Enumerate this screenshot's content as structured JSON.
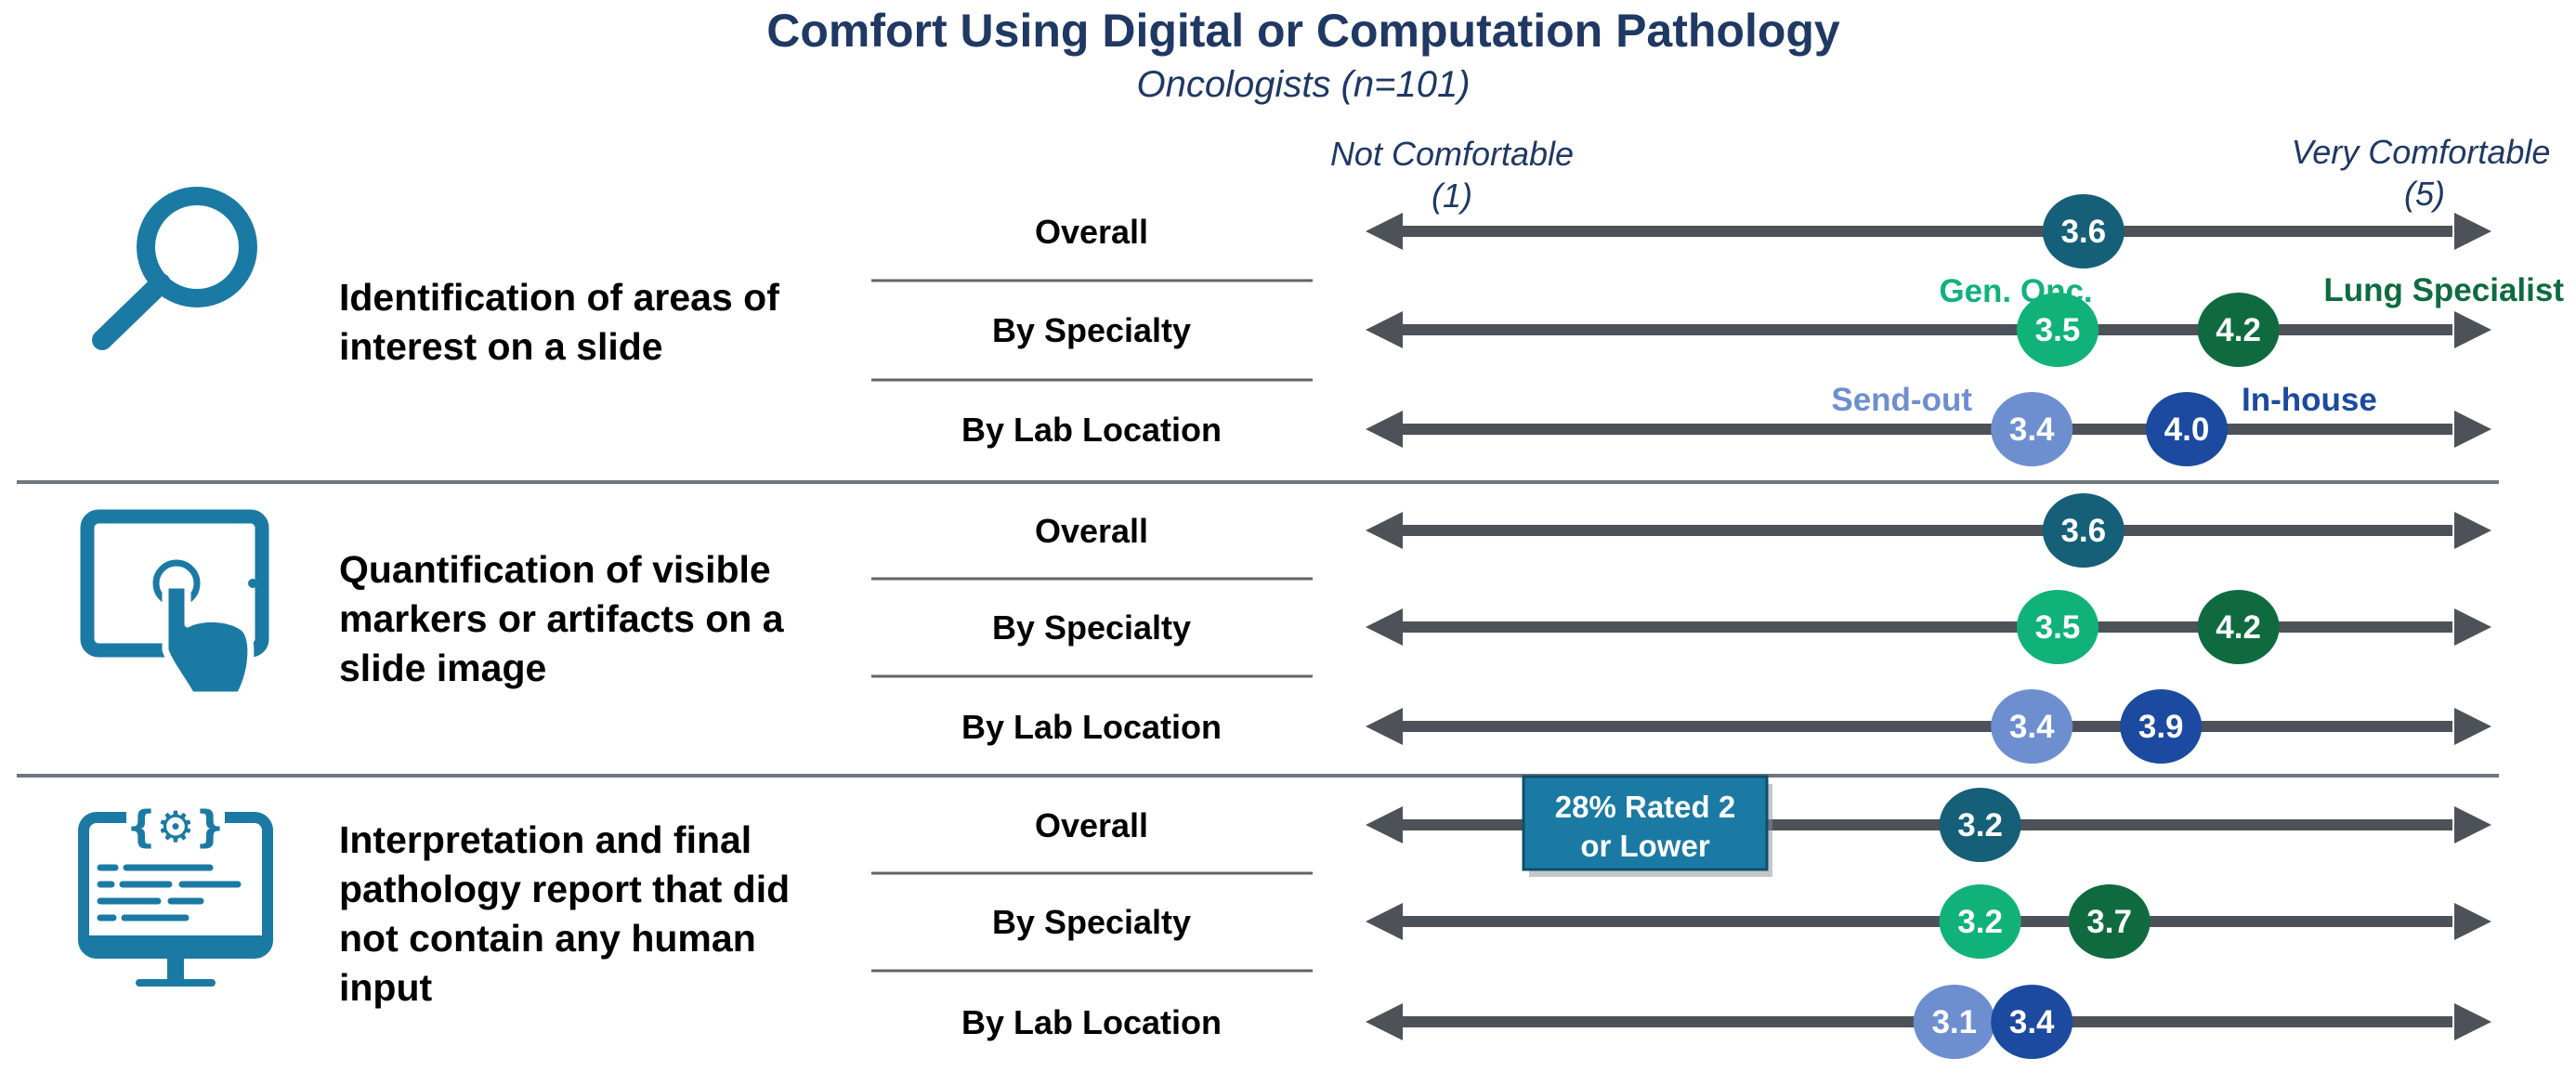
{
  "chart_data": {
    "type": "dot-range",
    "title": "Comfort Using Digital or Computation Pathology",
    "subtitle": "Oncologists (n=101)",
    "scale": {
      "min": 1,
      "max": 5,
      "min_label": [
        "Not Comfortable",
        "(1)"
      ],
      "max_label": [
        "Very Comfortable",
        "(5)"
      ]
    },
    "colors": {
      "overall": "#155f78",
      "gen_onc": "#10b27a",
      "lung": "#0f6b3f",
      "send_out": "#6d8fd0",
      "in_house": "#1b4aa0",
      "axis": "#4d5258",
      "icon": "#1b7aa3",
      "callout_fill": "#1b7aa3",
      "callout_border": "#0f4d6b"
    },
    "series_labels": {
      "gen_onc": "Gen. Onc.",
      "lung": "Lung Specialist",
      "send_out": "Send-out",
      "in_house": "In-house"
    },
    "categories": [
      {
        "icon": "magnifier-icon",
        "label": [
          "Identification of areas of",
          "interest on a slide"
        ],
        "rows": [
          {
            "label": "Overall",
            "points": [
              {
                "series": "overall",
                "value": 3.6,
                "text": "3.6"
              }
            ]
          },
          {
            "label": "By Specialty",
            "points": [
              {
                "series": "gen_onc",
                "value": 3.5,
                "text": "3.5"
              },
              {
                "series": "lung",
                "value": 4.2,
                "text": "4.2"
              }
            ]
          },
          {
            "label": "By Lab Location",
            "points": [
              {
                "series": "send_out",
                "value": 3.4,
                "text": "3.4"
              },
              {
                "series": "in_house",
                "value": 4.0,
                "text": "4.0"
              }
            ]
          }
        ]
      },
      {
        "icon": "tablet-touch-icon",
        "label": [
          "Quantification of visible",
          "markers or artifacts on a",
          "slide image"
        ],
        "rows": [
          {
            "label": "Overall",
            "points": [
              {
                "series": "overall",
                "value": 3.6,
                "text": "3.6"
              }
            ]
          },
          {
            "label": "By Specialty",
            "points": [
              {
                "series": "gen_onc",
                "value": 3.5,
                "text": "3.5"
              },
              {
                "series": "lung",
                "value": 4.2,
                "text": "4.2"
              }
            ]
          },
          {
            "label": "By Lab Location",
            "points": [
              {
                "series": "send_out",
                "value": 3.4,
                "text": "3.4"
              },
              {
                "series": "in_house",
                "value": 3.9,
                "text": "3.9"
              }
            ]
          }
        ]
      },
      {
        "icon": "computer-code-icon",
        "label": [
          "Interpretation and final",
          "pathology report that did",
          "not contain any human",
          "input"
        ],
        "rows": [
          {
            "label": "Overall",
            "points": [
              {
                "series": "overall",
                "value": 3.2,
                "text": "3.2"
              }
            ]
          },
          {
            "label": "By Specialty",
            "points": [
              {
                "series": "gen_onc",
                "value": 3.2,
                "text": "3.2"
              },
              {
                "series": "lung",
                "value": 3.7,
                "text": "3.7"
              }
            ]
          },
          {
            "label": "By Lab Location",
            "points": [
              {
                "series": "send_out",
                "value": 3.1,
                "text": "3.1"
              },
              {
                "series": "in_house",
                "value": 3.4,
                "text": "3.4"
              }
            ]
          }
        ]
      }
    ],
    "callout": {
      "category": 2,
      "row": 0,
      "text": [
        "28% Rated 2",
        "or Lower"
      ]
    }
  }
}
